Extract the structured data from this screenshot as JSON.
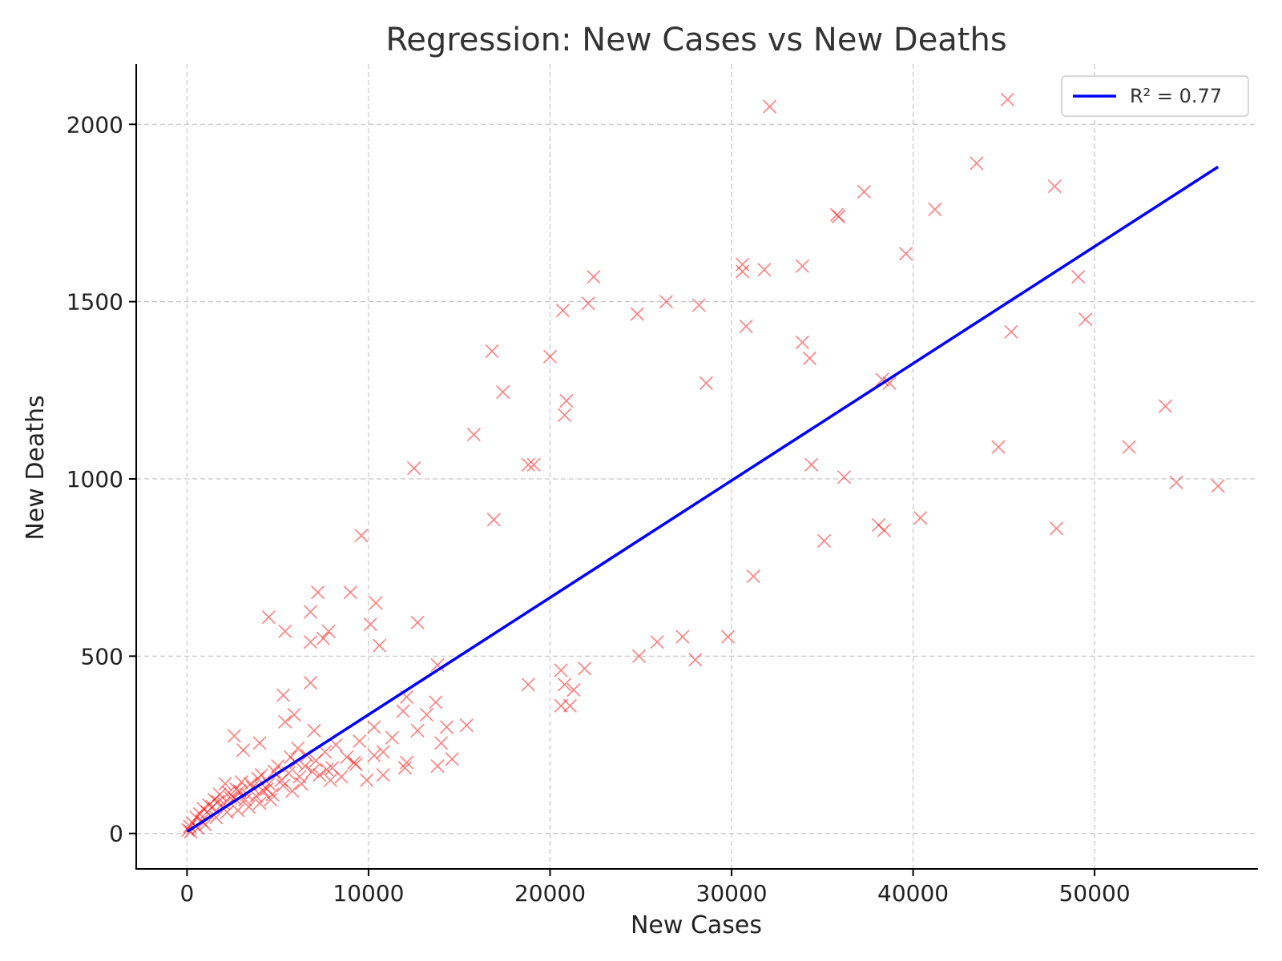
{
  "chart_data": {
    "type": "scatter",
    "title": "Regression: New Cases vs New Deaths",
    "xlabel": "New Cases",
    "ylabel": "New Deaths",
    "xlim": [
      -2800,
      59000
    ],
    "ylim": [
      -100,
      2170
    ],
    "x_ticks": [
      0,
      10000,
      20000,
      30000,
      40000,
      50000
    ],
    "y_ticks": [
      0,
      500,
      1000,
      1500,
      2000
    ],
    "grid": true,
    "legend_position": "top-right",
    "colors": {
      "points": "#ff0000",
      "fit": "#0000ff"
    },
    "fit_line": {
      "label": "R² = 0.77",
      "x": [
        0,
        56800
      ],
      "y": [
        5,
        1880
      ]
    },
    "points": [
      [
        45200,
        2070
      ],
      [
        32100,
        2050
      ],
      [
        43500,
        1890
      ],
      [
        47800,
        1825
      ],
      [
        37300,
        1810
      ],
      [
        41200,
        1760
      ],
      [
        35800,
        1745
      ],
      [
        35900,
        1740
      ],
      [
        39600,
        1635
      ],
      [
        30600,
        1605
      ],
      [
        30600,
        1585
      ],
      [
        31800,
        1590
      ],
      [
        33900,
        1600
      ],
      [
        49100,
        1570
      ],
      [
        22400,
        1570
      ],
      [
        26400,
        1500
      ],
      [
        22100,
        1495
      ],
      [
        28200,
        1490
      ],
      [
        20700,
        1475
      ],
      [
        24800,
        1465
      ],
      [
        49500,
        1450
      ],
      [
        30800,
        1430
      ],
      [
        45400,
        1415
      ],
      [
        33900,
        1385
      ],
      [
        16800,
        1360
      ],
      [
        20000,
        1345
      ],
      [
        34300,
        1340
      ],
      [
        38300,
        1280
      ],
      [
        38700,
        1270
      ],
      [
        28600,
        1270
      ],
      [
        17400,
        1245
      ],
      [
        20900,
        1220
      ],
      [
        20800,
        1180
      ],
      [
        53900,
        1205
      ],
      [
        15800,
        1125
      ],
      [
        51900,
        1090
      ],
      [
        44700,
        1090
      ],
      [
        18800,
        1040
      ],
      [
        19100,
        1040
      ],
      [
        34400,
        1040
      ],
      [
        12500,
        1030
      ],
      [
        36200,
        1005
      ],
      [
        54500,
        990
      ],
      [
        56800,
        980
      ],
      [
        40400,
        890
      ],
      [
        16900,
        885
      ],
      [
        38100,
        870
      ],
      [
        38400,
        855
      ],
      [
        47900,
        860
      ],
      [
        35100,
        825
      ],
      [
        9600,
        840
      ],
      [
        31200,
        725
      ],
      [
        7200,
        680
      ],
      [
        9000,
        680
      ],
      [
        10400,
        650
      ],
      [
        6800,
        625
      ],
      [
        4500,
        610
      ],
      [
        12700,
        595
      ],
      [
        10100,
        590
      ],
      [
        5400,
        570
      ],
      [
        7800,
        570
      ],
      [
        29800,
        555
      ],
      [
        27300,
        555
      ],
      [
        7500,
        550
      ],
      [
        6800,
        540
      ],
      [
        25900,
        540
      ],
      [
        10600,
        530
      ],
      [
        24900,
        500
      ],
      [
        28000,
        490
      ],
      [
        13800,
        475
      ],
      [
        20600,
        460
      ],
      [
        21900,
        465
      ],
      [
        6800,
        425
      ],
      [
        18800,
        420
      ],
      [
        20800,
        420
      ],
      [
        21300,
        405
      ],
      [
        5300,
        390
      ],
      [
        12100,
        385
      ],
      [
        13700,
        370
      ],
      [
        20600,
        360
      ],
      [
        21100,
        360
      ],
      [
        11900,
        345
      ],
      [
        13200,
        335
      ],
      [
        5900,
        335
      ],
      [
        5400,
        315
      ],
      [
        15400,
        305
      ],
      [
        14300,
        300
      ],
      [
        10300,
        300
      ],
      [
        7000,
        290
      ],
      [
        12700,
        290
      ],
      [
        2600,
        275
      ],
      [
        11300,
        270
      ],
      [
        9500,
        260
      ],
      [
        14000,
        255
      ],
      [
        4000,
        255
      ],
      [
        8200,
        250
      ],
      [
        6100,
        240
      ],
      [
        3100,
        235
      ],
      [
        10800,
        230
      ],
      [
        14600,
        210
      ],
      [
        12100,
        200
      ],
      [
        9300,
        195
      ],
      [
        13800,
        190
      ],
      [
        12000,
        185
      ],
      [
        10800,
        165
      ],
      [
        9900,
        150
      ],
      [
        8500,
        160
      ],
      [
        7900,
        150
      ],
      [
        7300,
        165
      ],
      [
        6900,
        175
      ],
      [
        6500,
        190
      ],
      [
        6000,
        200
      ],
      [
        5600,
        170
      ],
      [
        5200,
        150
      ],
      [
        4800,
        175
      ],
      [
        4500,
        140
      ],
      [
        4200,
        120
      ],
      [
        3900,
        155
      ],
      [
        3600,
        130
      ],
      [
        3300,
        110
      ],
      [
        3000,
        145
      ],
      [
        2700,
        125
      ],
      [
        2400,
        100
      ],
      [
        2100,
        140
      ],
      [
        1800,
        110
      ],
      [
        1500,
        95
      ],
      [
        1200,
        80
      ],
      [
        900,
        70
      ],
      [
        700,
        55
      ],
      [
        500,
        45
      ],
      [
        300,
        30
      ],
      [
        150,
        20
      ],
      [
        50,
        10
      ],
      [
        800,
        35
      ],
      [
        1100,
        60
      ],
      [
        1400,
        75
      ],
      [
        1700,
        90
      ],
      [
        2000,
        85
      ],
      [
        2300,
        115
      ],
      [
        2600,
        100
      ],
      [
        2900,
        120
      ],
      [
        3200,
        95
      ],
      [
        3500,
        140
      ],
      [
        3800,
        105
      ],
      [
        4100,
        165
      ],
      [
        4400,
        125
      ],
      [
        4700,
        110
      ],
      [
        5000,
        190
      ],
      [
        5300,
        135
      ],
      [
        5700,
        215
      ],
      [
        6200,
        160
      ],
      [
        6600,
        220
      ],
      [
        7100,
        205
      ],
      [
        7600,
        230
      ],
      [
        8000,
        185
      ],
      [
        8800,
        215
      ],
      [
        4600,
        95
      ],
      [
        4000,
        85
      ],
      [
        3400,
        75
      ],
      [
        2800,
        65
      ],
      [
        2200,
        60
      ],
      [
        1600,
        45
      ],
      [
        1000,
        25
      ],
      [
        600,
        15
      ],
      [
        200,
        5
      ],
      [
        5800,
        120
      ],
      [
        6300,
        140
      ],
      [
        7700,
        180
      ],
      [
        9200,
        200
      ],
      [
        10300,
        220
      ]
    ]
  }
}
